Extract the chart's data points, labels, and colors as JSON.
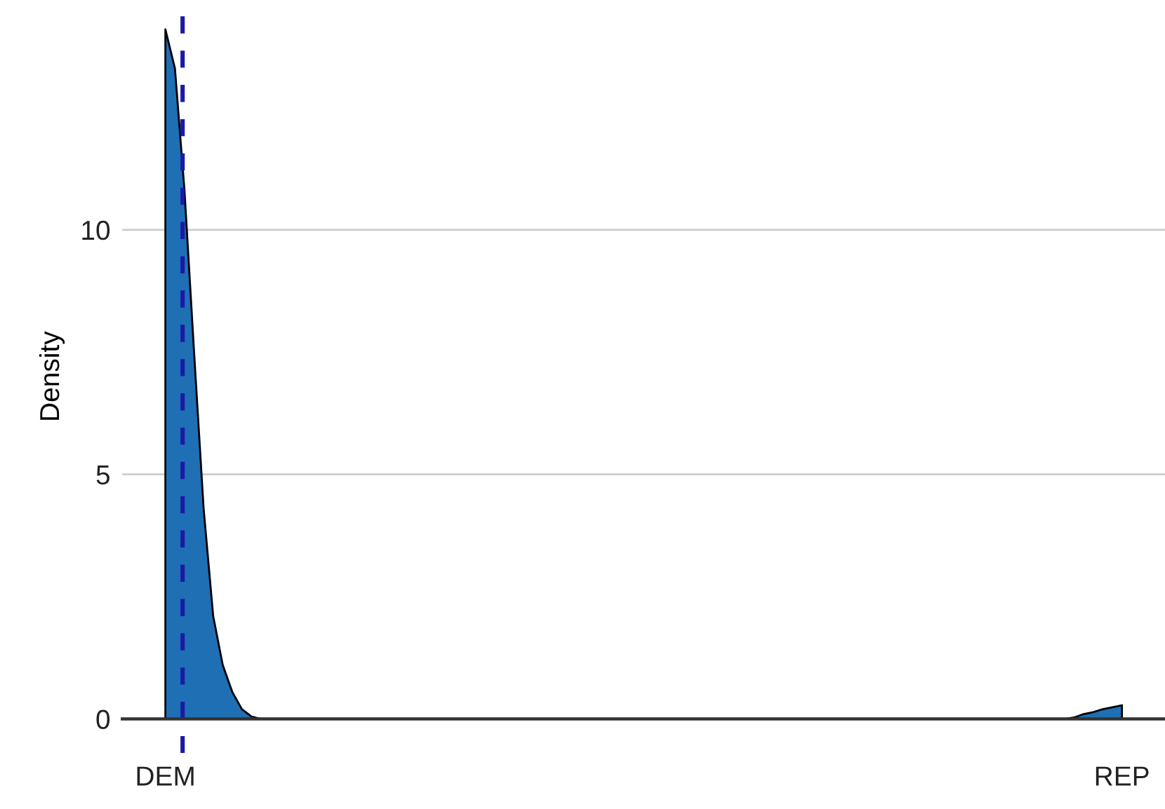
{
  "chart_data": {
    "type": "area",
    "ylabel": "Density",
    "categories": [
      "DEM",
      null,
      null,
      null,
      null,
      null,
      null,
      null,
      null,
      null,
      null,
      null,
      null,
      null,
      null,
      null,
      null,
      null,
      null,
      null,
      null,
      null,
      null,
      null,
      null,
      null,
      null,
      null,
      null,
      null,
      null,
      null,
      null,
      null,
      null,
      null,
      null,
      null,
      null,
      null,
      null,
      null,
      null,
      null,
      null,
      null,
      null,
      null,
      null,
      null,
      null,
      null,
      null,
      null,
      null,
      null,
      null,
      null,
      null,
      null,
      null,
      null,
      null,
      null,
      null,
      null,
      null,
      null,
      null,
      null,
      null,
      null,
      null,
      null,
      null,
      null,
      null,
      null,
      null,
      null,
      null,
      null,
      null,
      null,
      null,
      null,
      null,
      null,
      null,
      null,
      null,
      null,
      null,
      null,
      null,
      null,
      null,
      null,
      null,
      null,
      "REP"
    ],
    "series": [
      {
        "color": "#1f6fb4",
        "values": [
          14.1,
          13.3,
          10.8,
          7.5,
          4.3,
          2.1,
          1.1,
          0.55,
          0.2,
          0.05,
          0,
          0,
          0,
          0,
          0,
          0,
          0,
          0,
          0,
          0,
          0,
          0,
          0,
          0,
          0,
          0,
          0,
          0,
          0,
          0,
          0,
          0,
          0,
          0,
          0,
          0,
          0,
          0,
          0,
          0,
          0,
          0,
          0,
          0,
          0,
          0,
          0,
          0,
          0,
          0,
          0,
          0,
          0,
          0,
          0,
          0,
          0,
          0,
          0,
          0,
          0,
          0,
          0,
          0,
          0,
          0,
          0,
          0,
          0,
          0,
          0,
          0,
          0,
          0,
          0,
          0,
          0,
          0,
          0,
          0,
          0,
          0,
          0,
          0,
          0,
          0,
          0,
          0,
          0,
          0,
          0,
          0,
          0,
          0,
          0,
          0.03,
          0.1,
          0.14,
          0.2,
          0.24,
          0.28
        ]
      }
    ],
    "ylim": [
      -0.7,
      14.7
    ],
    "yticks": [
      0,
      5,
      10
    ],
    "grid": "y"
  }
}
